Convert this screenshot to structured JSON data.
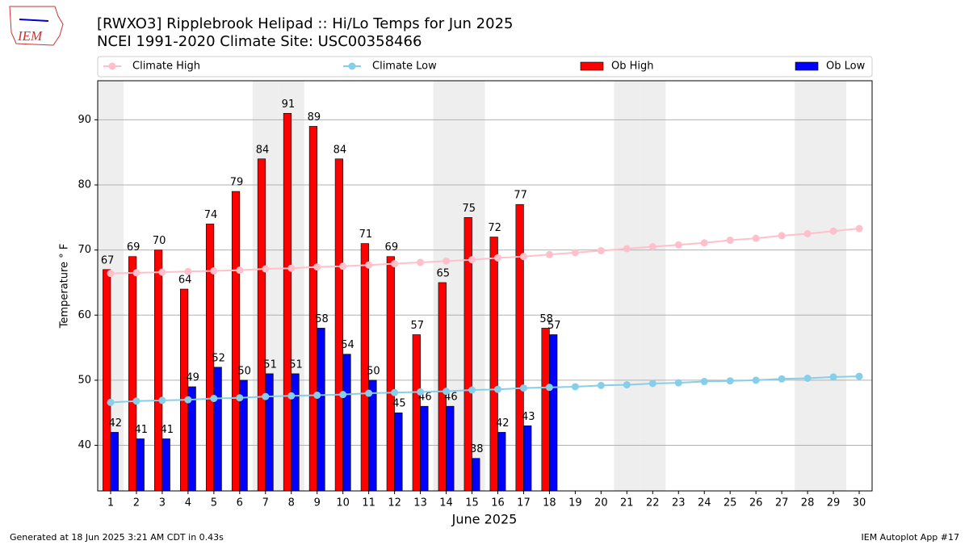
{
  "logo": "IEM",
  "footer": {
    "left": "Generated at 18 Jun 2025 3:21 AM CDT in 0.43s",
    "right": "IEM Autoplot App #17"
  },
  "chart_data": {
    "type": "bar",
    "title": "[RWXO3] Ripplebrook Helipad :: Hi/Lo Temps for Jun 2025",
    "subtitle": "NCEI 1991-2020 Climate Site: USC00358466",
    "xlabel": "June 2025",
    "ylabel": "Temperature ° F",
    "x": [
      1,
      2,
      3,
      4,
      5,
      6,
      7,
      8,
      9,
      10,
      11,
      12,
      13,
      14,
      15,
      16,
      17,
      18,
      19,
      20,
      21,
      22,
      23,
      24,
      25,
      26,
      27,
      28,
      29,
      30
    ],
    "xlim": [
      0.5,
      30.5
    ],
    "xticks": [
      1,
      2,
      3,
      4,
      5,
      6,
      7,
      8,
      9,
      10,
      11,
      12,
      13,
      14,
      15,
      16,
      17,
      18,
      19,
      20,
      21,
      22,
      23,
      24,
      25,
      26,
      27,
      28,
      29,
      30
    ],
    "ylim": [
      33,
      96
    ],
    "yticks": [
      40,
      50,
      60,
      70,
      80,
      90
    ],
    "grid": true,
    "shaded_days": [
      1,
      7,
      8,
      14,
      15,
      21,
      22,
      28,
      29
    ],
    "series": [
      {
        "name": "Climate High",
        "type": "line",
        "color": "#ffc0cb",
        "values": [
          66.4,
          66.5,
          66.6,
          66.7,
          66.8,
          66.9,
          67.1,
          67.2,
          67.4,
          67.5,
          67.7,
          67.9,
          68.1,
          68.3,
          68.5,
          68.8,
          69.0,
          69.3,
          69.6,
          69.9,
          70.2,
          70.5,
          70.8,
          71.1,
          71.5,
          71.8,
          72.2,
          72.5,
          72.9,
          73.3
        ]
      },
      {
        "name": "Climate Low",
        "type": "line",
        "color": "#87ceeb",
        "values": [
          46.6,
          46.8,
          46.9,
          47.0,
          47.2,
          47.3,
          47.5,
          47.6,
          47.7,
          47.8,
          48.0,
          48.1,
          48.2,
          48.3,
          48.5,
          48.6,
          48.8,
          48.9,
          49.0,
          49.2,
          49.3,
          49.5,
          49.6,
          49.8,
          49.9,
          50.0,
          50.2,
          50.3,
          50.5,
          50.6
        ]
      },
      {
        "name": "Ob High",
        "type": "bar",
        "color": "#ff0000",
        "values": [
          67,
          69,
          70,
          64,
          74,
          79,
          84,
          91,
          89,
          84,
          71,
          69,
          57,
          65,
          75,
          72,
          77,
          58,
          null,
          null,
          null,
          null,
          null,
          null,
          null,
          null,
          null,
          null,
          null,
          null
        ]
      },
      {
        "name": "Ob Low",
        "type": "bar",
        "color": "#0000ff",
        "values": [
          42,
          41,
          41,
          49,
          52,
          50,
          51,
          51,
          58,
          54,
          50,
          45,
          46,
          46,
          38,
          42,
          43,
          57,
          null,
          null,
          null,
          null,
          null,
          null,
          null,
          null,
          null,
          null,
          null,
          null
        ]
      }
    ]
  }
}
